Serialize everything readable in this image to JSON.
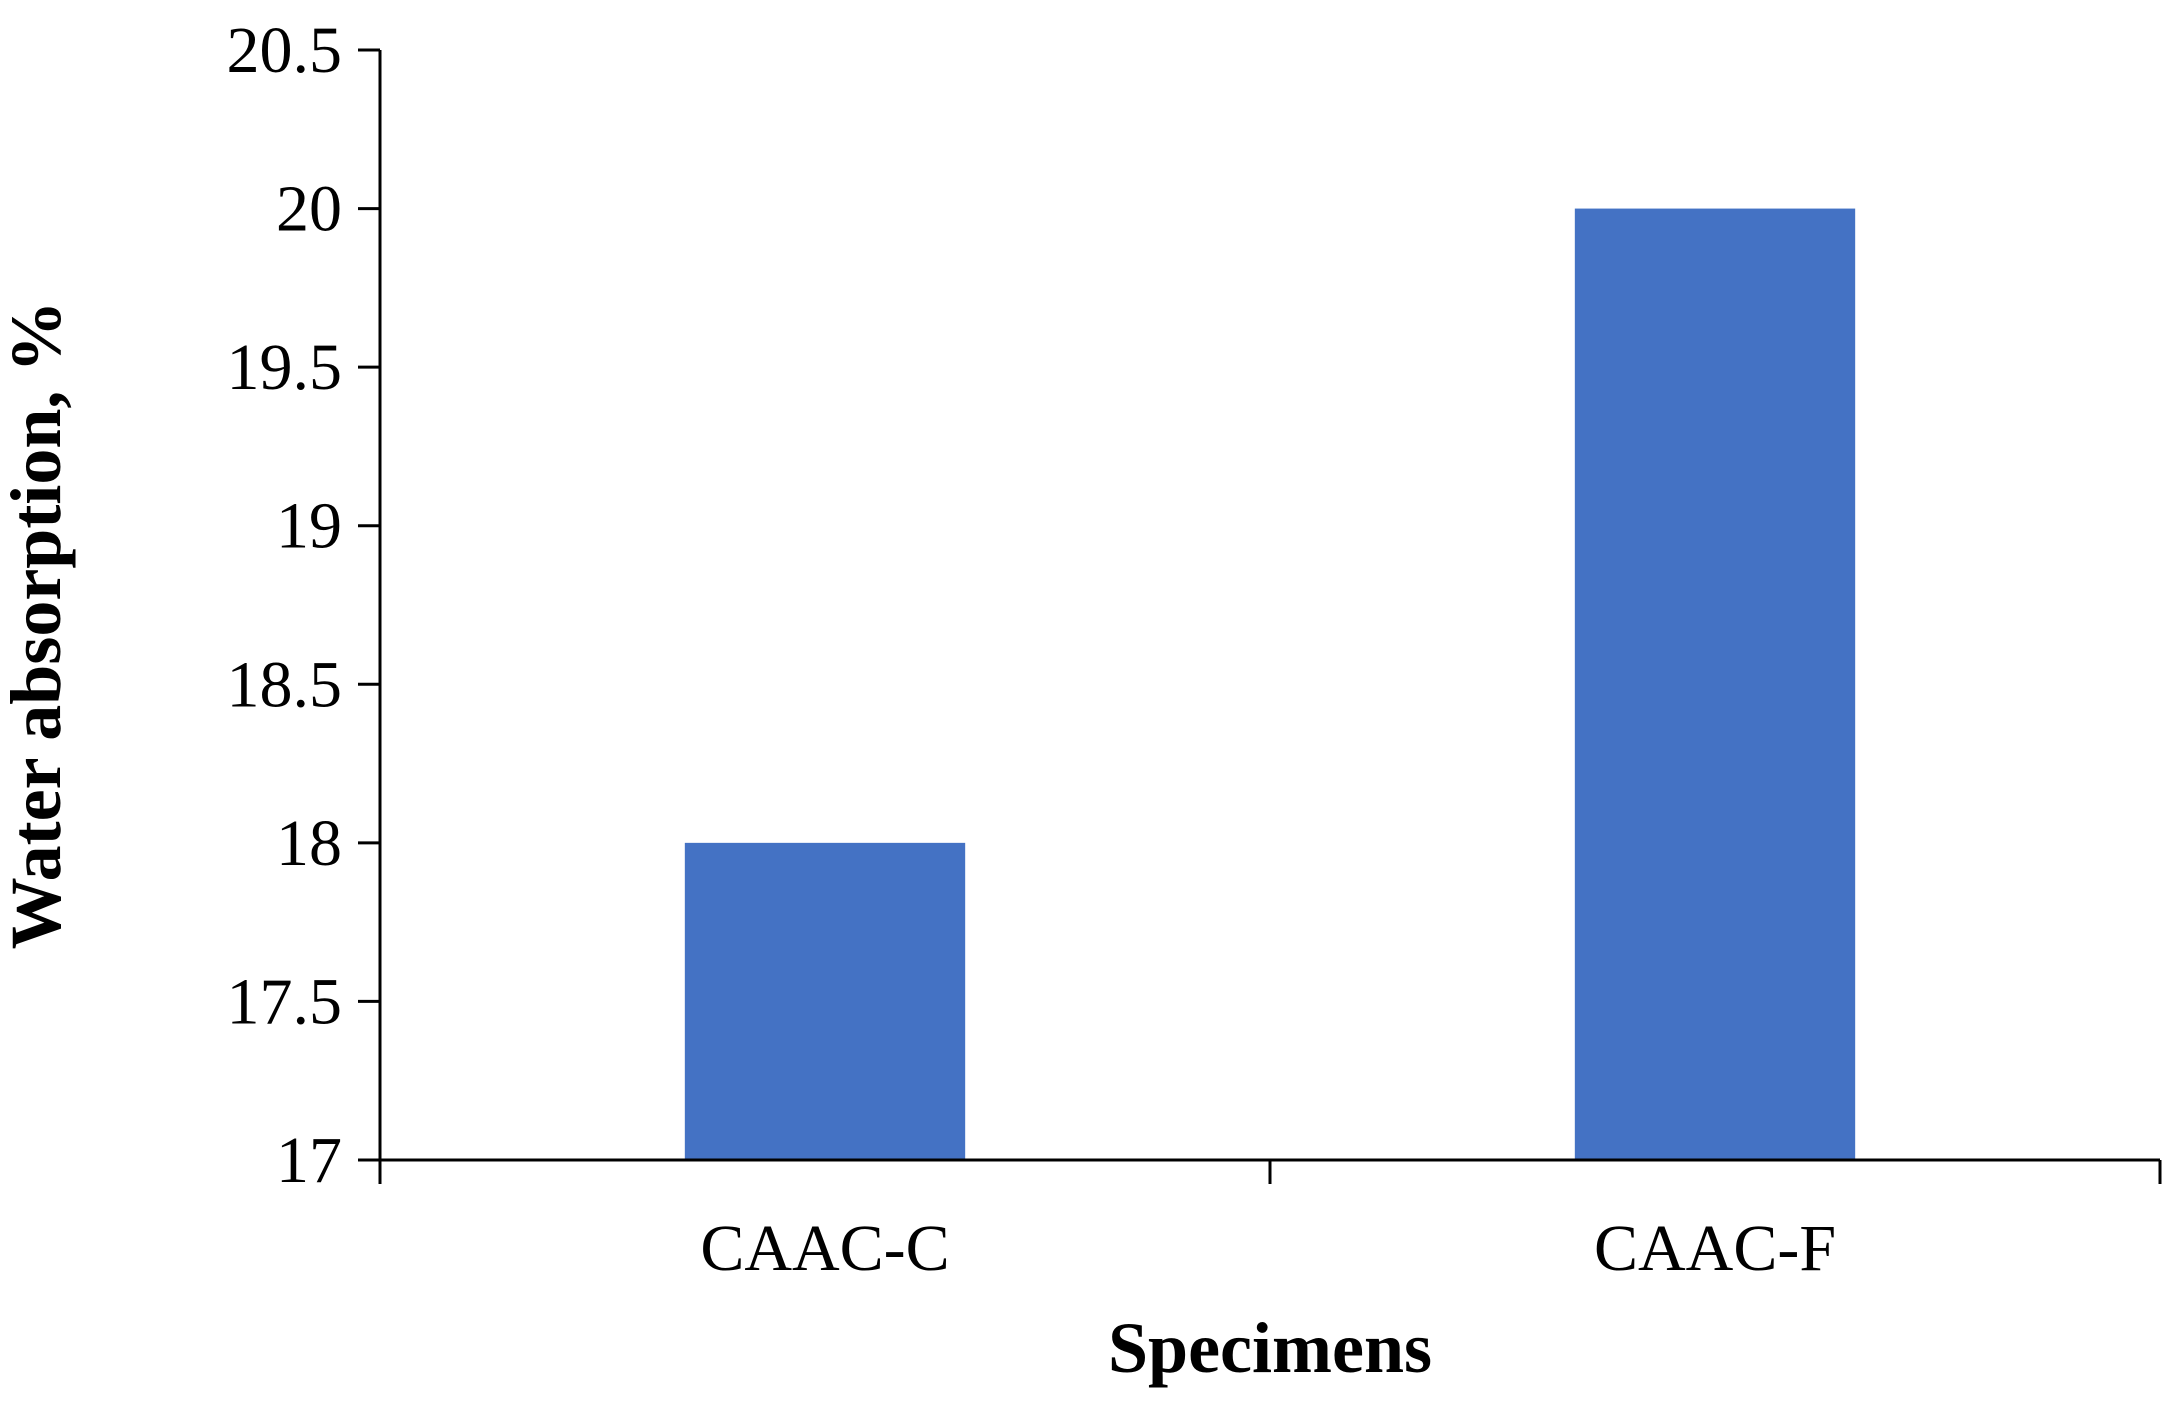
{
  "chart_data": {
    "type": "bar",
    "title": "",
    "xlabel": "Specimens",
    "ylabel": "Water absorption, %",
    "categories": [
      "CAAC-C",
      "CAAC-F"
    ],
    "series": [
      {
        "values": [
          18,
          20
        ],
        "color": "#4472C4"
      }
    ],
    "ylim": [
      17,
      20.5
    ],
    "yticks": [
      "17",
      "17.5",
      "18",
      "18.5",
      "19",
      "19.5",
      "20",
      "20.5"
    ],
    "grid": false,
    "legend": "none"
  }
}
